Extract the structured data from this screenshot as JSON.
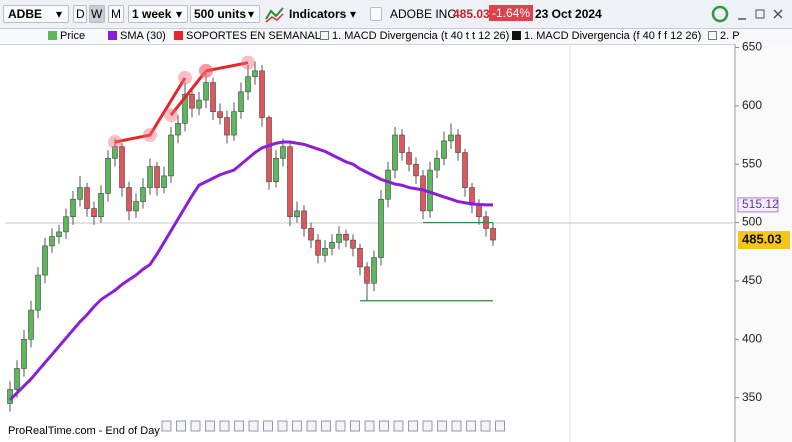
{
  "toolbar": {
    "symbol": "ADBE",
    "periods": [
      "D",
      "W",
      "M"
    ],
    "timeframe": "1 week",
    "units": "500 units",
    "indicators": "Indicators",
    "name": "ADOBE INC.",
    "price": "485.03",
    "change": "-1.64%",
    "date": "23 Oct 2024"
  },
  "legend": [
    "1. MACD Divergencia (t 40 t t 12 26)",
    "1. MACD Divergencia (f 40 f f 12 26)",
    "2. P"
  ],
  "footer": "ProRealTime.com - End of Day",
  "chart_data": {
    "type": "candlestick",
    "name": "Price",
    "up_color": "#5cb85c",
    "down_color": "#e0575b",
    "open": [
      345,
      357,
      375,
      400,
      425,
      455,
      480,
      488,
      492,
      505,
      520,
      530,
      512,
      505,
      525,
      555,
      565,
      530,
      510,
      518,
      530,
      548,
      530,
      540,
      575,
      585,
      610,
      598,
      605,
      620,
      595,
      590,
      575,
      595,
      612,
      625,
      630,
      590,
      535,
      555,
      565,
      505,
      510,
      495,
      485,
      472,
      478,
      483,
      490,
      485,
      478,
      462,
      448,
      470,
      520,
      545,
      575,
      560,
      550,
      540,
      510,
      545,
      555,
      570,
      575,
      560,
      530,
      515,
      505,
      495
    ],
    "high": [
      364,
      382,
      408,
      433,
      462,
      487,
      495,
      498,
      512,
      527,
      540,
      534,
      518,
      532,
      562,
      572,
      568,
      535,
      525,
      538,
      555,
      552,
      548,
      582,
      592,
      620,
      614,
      612,
      628,
      624,
      602,
      596,
      603,
      620,
      635,
      638,
      635,
      592,
      562,
      572,
      568,
      518,
      515,
      500,
      490,
      485,
      490,
      497,
      494,
      490,
      482,
      466,
      476,
      528,
      552,
      582,
      580,
      565,
      556,
      545,
      552,
      562,
      578,
      585,
      580,
      563,
      534,
      520,
      510,
      500
    ],
    "low": [
      338,
      350,
      368,
      393,
      418,
      448,
      474,
      482,
      486,
      498,
      514,
      505,
      498,
      500,
      518,
      548,
      522,
      502,
      504,
      512,
      524,
      523,
      525,
      534,
      568,
      578,
      590,
      592,
      598,
      588,
      584,
      568,
      570,
      589,
      605,
      618,
      582,
      528,
      530,
      548,
      497,
      500,
      488,
      478,
      465,
      466,
      472,
      477,
      479,
      471,
      455,
      433,
      441,
      463,
      513,
      538,
      553,
      544,
      533,
      503,
      504,
      538,
      549,
      563,
      553,
      522,
      508,
      498,
      488,
      480
    ],
    "close": [
      357,
      375,
      400,
      425,
      455,
      480,
      488,
      492,
      505,
      520,
      530,
      512,
      505,
      525,
      555,
      565,
      530,
      510,
      518,
      530,
      548,
      530,
      540,
      575,
      585,
      610,
      598,
      605,
      620,
      595,
      590,
      575,
      595,
      612,
      625,
      630,
      590,
      535,
      555,
      565,
      505,
      510,
      495,
      485,
      472,
      478,
      483,
      490,
      485,
      478,
      462,
      448,
      470,
      520,
      545,
      575,
      560,
      550,
      540,
      510,
      545,
      555,
      570,
      575,
      560,
      530,
      515,
      505,
      495,
      485.03
    ],
    "sma": {
      "name": "SMA (30)",
      "color": "#8a1fd8",
      "values": [
        348,
        354,
        360,
        366,
        373,
        380,
        387,
        394,
        401,
        408,
        415,
        421,
        428,
        434,
        438,
        442,
        447,
        451,
        455,
        460,
        464,
        473,
        483,
        493,
        503,
        513,
        523,
        532,
        535,
        538,
        541,
        543,
        545,
        550,
        555,
        560,
        564,
        566,
        568,
        569,
        569,
        568,
        567,
        565,
        563,
        561,
        558,
        555,
        552,
        550,
        546,
        543,
        540,
        537,
        535,
        533,
        532,
        530,
        529,
        528,
        526,
        524,
        522,
        520,
        518,
        517,
        516,
        515.5,
        515.2,
        515.12
      ]
    },
    "supports": {
      "name": "SOPORTES EN SEMANAL",
      "color": "#e8252a",
      "lines": [
        [
          [
            15,
            569
          ],
          [
            20,
            575
          ],
          [
            25,
            624
          ]
        ],
        [
          [
            23,
            592
          ],
          [
            28,
            630
          ]
        ],
        [
          [
            28,
            630
          ],
          [
            34,
            637
          ]
        ]
      ]
    },
    "levels": {
      "color": "#2e8b3a",
      "lines": [
        {
          "from": 59,
          "to": 69,
          "value": 500
        },
        {
          "from": 50,
          "to": 69,
          "value": 433
        }
      ]
    },
    "ylim": [
      312,
      653
    ],
    "yticks": [
      350,
      400,
      450,
      500,
      550,
      600,
      650
    ]
  }
}
